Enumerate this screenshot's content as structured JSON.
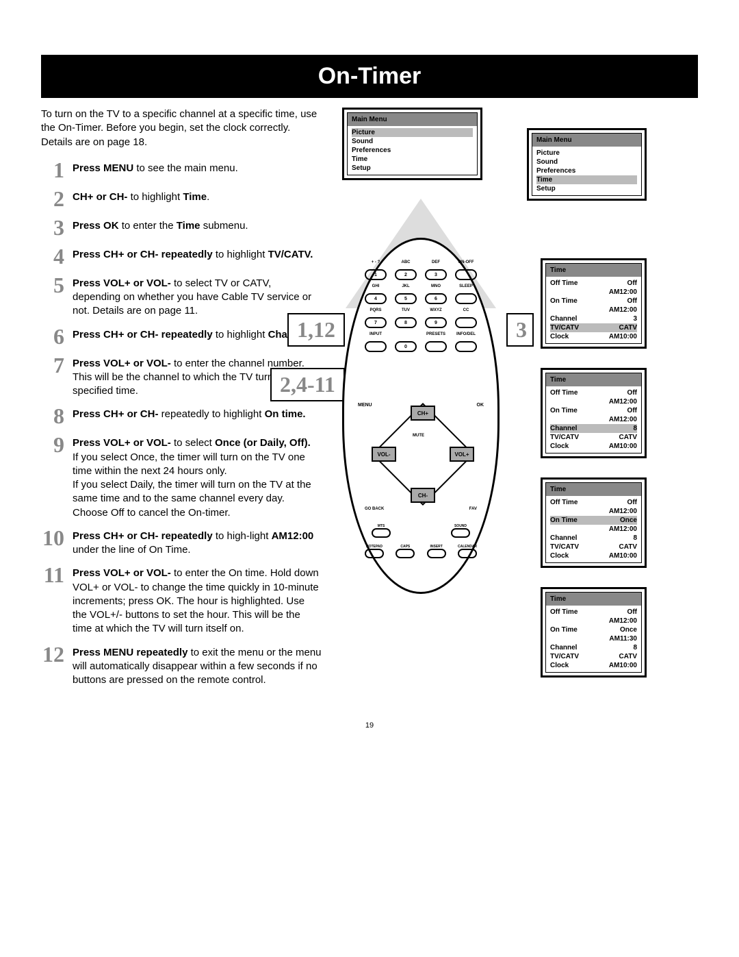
{
  "title": "On-Timer",
  "intro": "To turn on the TV to a specific channel at a specific time, use the On-Timer. Before you begin, set the clock correctly. Details are on page 18.",
  "page_number": "19",
  "steps": [
    {
      "n": "1",
      "bold": "Press MENU",
      "rest": " to see the main menu."
    },
    {
      "n": "2",
      "bold": "CH+ or CH-",
      "rest": " to highlight ",
      "bold2": "Time",
      "rest2": "."
    },
    {
      "n": "3",
      "bold": "Press OK",
      "rest": " to enter the ",
      "bold2": "Time",
      "rest2": " submenu."
    },
    {
      "n": "4",
      "bold": "Press CH+ or CH- repeatedly",
      "rest": " to highlight ",
      "bold2": "TV/CATV.",
      "rest2": ""
    },
    {
      "n": "5",
      "bold": "Press VOL+ or VOL-",
      "rest": " to select TV or CATV, depending on whether you have Cable TV service or not. Details are on page 11."
    },
    {
      "n": "6",
      "bold": "Press CH+ or CH- repeatedly",
      "rest": " to highlight ",
      "bold2": "Channel.",
      "rest2": ""
    },
    {
      "n": "7",
      "bold": "Press VOL+ or VOL-",
      "rest": " to enter the channel number. This will be the channel to which the TV turns on at the specified time."
    },
    {
      "n": "8",
      "bold": "Press CH+ or CH-",
      "rest": " repeatedly to highlight ",
      "bold2": "On time.",
      "rest2": ""
    },
    {
      "n": "9",
      "bold": "Press VOL+ or VOL-",
      "rest": " to select ",
      "bold2": "Once (or Daily, Off).",
      "rest2": "",
      "extra": "If you select Once, the timer will turn on the TV one time within the next 24 hours only.\nIf you select Daily, the timer will turn on the TV at the same time and to the same channel every day.\nChoose Off to cancel the On-timer."
    },
    {
      "n": "10",
      "bold": "Press CH+ or CH- repeatedly",
      "rest": " to high-light ",
      "bold2": "AM12:00",
      "rest2": " under the line of On Time."
    },
    {
      "n": "11",
      "bold": "Press VOL+ or VOL-",
      "rest": " to enter the On time. Hold down VOL+ or VOL- to change the time quickly in 10-minute increments; press OK. The hour is highlighted. Use the VOL+/- buttons to set the hour. This will be the time at which the TV will turn itself on."
    },
    {
      "n": "12",
      "bold": "Press MENU repeatedly",
      "rest": " to exit the menu or the menu will automatically disappear within a few seconds if no buttons are pressed on the remote control."
    }
  ],
  "callouts": {
    "a": "1,12",
    "b": "2,4-11",
    "c": "3"
  },
  "main_menu": {
    "title": "Main Menu",
    "items": [
      "Picture",
      "Sound",
      "Preferences",
      "Time",
      "Setup"
    ],
    "hl_a": "Picture",
    "hl_b": "Time"
  },
  "time_menus": [
    {
      "off_time": "Off",
      "off_sub": "AM12:00",
      "on_time": "Off",
      "on_sub": "AM12:00",
      "channel": "3",
      "tvcatv": "CATV",
      "tvcatv_hl": true,
      "clock": "AM10:00"
    },
    {
      "off_time": "Off",
      "off_sub": "AM12:00",
      "on_time": "Off",
      "on_sub": "AM12:00",
      "channel": "8",
      "channel_hl": true,
      "tvcatv": "CATV",
      "clock": "AM10:00"
    },
    {
      "off_time": "Off",
      "off_sub": "AM12:00",
      "on_time": "Once",
      "on_hl": true,
      "on_sub": "AM12:00",
      "channel": "8",
      "tvcatv": "CATV",
      "clock": "AM10:00"
    },
    {
      "off_time": "Off",
      "off_sub": "AM12:00",
      "on_time": "Once",
      "on_sub": "AM11:30",
      "on_sub_hl": true,
      "channel": "8",
      "tvcatv": "CATV",
      "clock": "AM10:00"
    }
  ],
  "remote_labels": {
    "row1": [
      "+ - ?",
      "ABC",
      "DEF",
      "ON-OFF"
    ],
    "row1b": [
      "1",
      "2",
      "3",
      ""
    ],
    "row2": [
      "GHI",
      "JKL",
      "MNO",
      "SLEEP"
    ],
    "row2b": [
      "4",
      "5",
      "6",
      ""
    ],
    "row3": [
      "PQRS",
      "TUV",
      "WXYZ",
      "CC"
    ],
    "row3b": [
      "7",
      "8",
      "9",
      ""
    ],
    "row4": [
      "INPUT",
      "",
      "PRESETS",
      "INFO/DEL"
    ],
    "row4b": [
      "",
      "0",
      "",
      ""
    ],
    "menu": "MENU",
    "ok": "OK",
    "ch_up": "CH+",
    "ch_dn": "CH-",
    "vol_dn": "VOL-",
    "vol_up": "VOL+",
    "mute": "MUTE",
    "goback": "GO BACK",
    "fav": "FAV",
    "mts": "MTS",
    "sound": "SOUND",
    "bottom": [
      "NOTEPAD",
      "CAPS",
      "INSERT",
      "CALENDAR"
    ]
  }
}
